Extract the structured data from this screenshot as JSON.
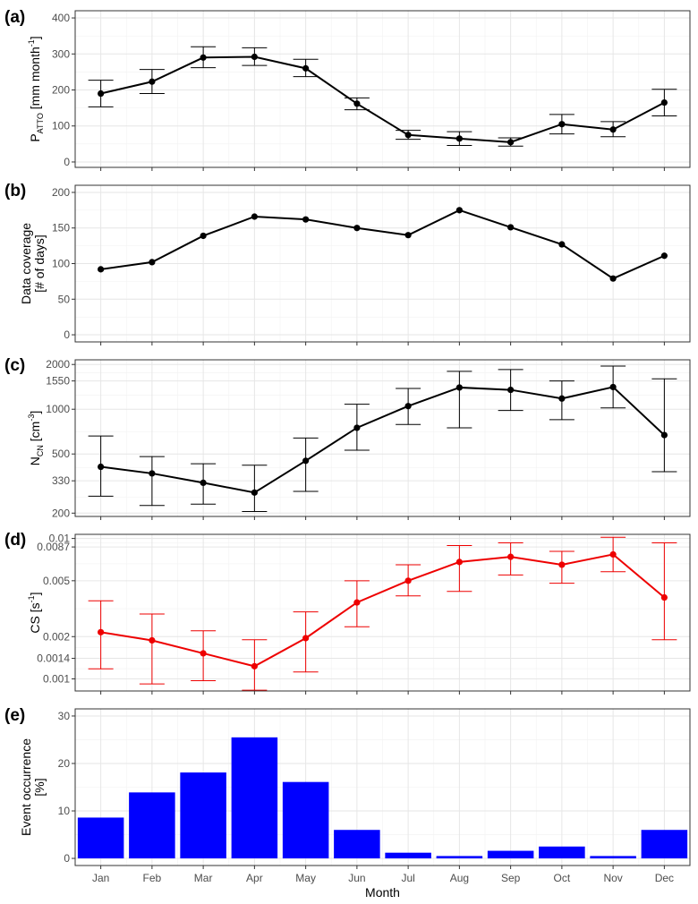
{
  "months": [
    "Jan",
    "Feb",
    "Mar",
    "Apr",
    "May",
    "Jun",
    "Jul",
    "Aug",
    "Sep",
    "Oct",
    "Nov",
    "Dec"
  ],
  "xlabel": "Month",
  "chart_data": [
    {
      "type": "line",
      "panel_label": "(a)",
      "ylabel": {
        "main": "P",
        "sub": "ATTO",
        "rest": " [mm month",
        "sup": "-1",
        "end": "]"
      },
      "ylim": [
        -15,
        420
      ],
      "yscale": "linear",
      "yticks": [
        0,
        100,
        200,
        300,
        400
      ],
      "ytick_labels": [
        "0",
        "100",
        "200",
        "300",
        "400"
      ],
      "color": "#000000",
      "grid": true,
      "series": [
        {
          "values": [
            190,
            223,
            290,
            292,
            260,
            162,
            75,
            65,
            55,
            105,
            90,
            165
          ],
          "err_low": [
            153,
            190,
            262,
            268,
            237,
            145,
            63,
            46,
            44,
            78,
            70,
            128
          ],
          "err_high": [
            227,
            257,
            320,
            317,
            285,
            178,
            88,
            84,
            67,
            132,
            112,
            202
          ]
        }
      ]
    },
    {
      "type": "line",
      "panel_label": "(b)",
      "ylabel": {
        "line1": "Data coverage",
        "line2": "[# of days]"
      },
      "ylim": [
        -10,
        210
      ],
      "yscale": "linear",
      "yticks": [
        0,
        50,
        100,
        150,
        200
      ],
      "ytick_labels": [
        "0",
        "50",
        "100",
        "150",
        "200"
      ],
      "color": "#000000",
      "grid": true,
      "series": [
        {
          "values": [
            92,
            102,
            139,
            166,
            162,
            150,
            140,
            175,
            151,
            127,
            79,
            111
          ]
        }
      ]
    },
    {
      "type": "line",
      "panel_label": "(c)",
      "ylabel": {
        "main": "N",
        "sub": "CN",
        "rest": " [cm",
        "sup": "-3",
        "end": "]"
      },
      "ylim": [
        190,
        2150
      ],
      "yscale": "log",
      "yticks": [
        200,
        330,
        500,
        1000,
        1550,
        2000
      ],
      "ytick_labels": [
        "200",
        "330",
        "500",
        "1000",
        "1550",
        "2000"
      ],
      "color": "#000000",
      "grid": true,
      "series": [
        {
          "values": [
            410,
            370,
            320,
            275,
            450,
            750,
            1050,
            1400,
            1350,
            1180,
            1410,
            670
          ],
          "err_low": [
            260,
            225,
            230,
            205,
            280,
            530,
            790,
            750,
            980,
            850,
            1020,
            380
          ],
          "err_high": [
            660,
            480,
            430,
            420,
            640,
            1080,
            1380,
            1800,
            1850,
            1550,
            1950,
            1600
          ]
        }
      ]
    },
    {
      "type": "line",
      "panel_label": "(d)",
      "ylabel": {
        "main": "CS [s",
        "sup": "-1",
        "end": "]"
      },
      "ylim": [
        0.00082,
        0.0107
      ],
      "yscale": "log",
      "yticks": [
        0.001,
        0.0014,
        0.002,
        0.005,
        0.0087,
        0.01
      ],
      "ytick_labels": [
        "0.001",
        "0.0014",
        "0.002",
        "0.005",
        "0.0087",
        "0.01"
      ],
      "color": "#ee0000",
      "grid": true,
      "series": [
        {
          "values": [
            0.00215,
            0.00188,
            0.00152,
            0.00123,
            0.00195,
            0.0035,
            0.005,
            0.0068,
            0.0074,
            0.0065,
            0.0077,
            0.0038
          ],
          "err_low": [
            0.00118,
            0.00092,
            0.00097,
            0.00083,
            0.00112,
            0.00235,
            0.0039,
            0.0042,
            0.0055,
            0.0048,
            0.0058,
            0.0019
          ],
          "err_high": [
            0.0036,
            0.0029,
            0.0022,
            0.0019,
            0.003,
            0.005,
            0.0065,
            0.0089,
            0.0093,
            0.0081,
            0.0102,
            0.0093
          ]
        }
      ]
    },
    {
      "type": "bar",
      "panel_label": "(e)",
      "ylabel": {
        "line1": "Event occurrence",
        "line2": "[%]"
      },
      "ylim": [
        -1.5,
        31.5
      ],
      "yscale": "linear",
      "yticks": [
        0,
        10,
        20,
        30
      ],
      "ytick_labels": [
        "0",
        "10",
        "20",
        "30"
      ],
      "color": "#0000ff",
      "grid": true,
      "series": [
        {
          "values": [
            8.6,
            13.9,
            18.1,
            25.5,
            16.1,
            6.0,
            1.2,
            0.5,
            1.6,
            2.5,
            0.5,
            6.0
          ]
        }
      ]
    }
  ]
}
